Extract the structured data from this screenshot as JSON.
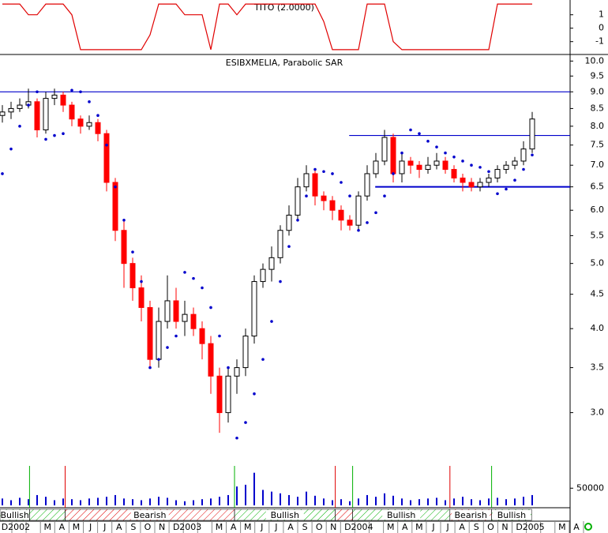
{
  "chart_data": [
    {
      "type": "line",
      "title": "TITO (2.0000)",
      "color": "#e00000",
      "values": [
        1.8,
        1.8,
        1.8,
        1.0,
        1.0,
        1.8,
        1.8,
        1.8,
        1.0,
        -1.6,
        -1.6,
        -1.6,
        -1.6,
        -1.6,
        -1.6,
        -1.6,
        -1.6,
        -0.5,
        1.8,
        1.8,
        1.8,
        1.0,
        1.0,
        1.0,
        -1.6,
        1.8,
        1.8,
        1.0,
        1.8,
        1.8,
        1.8,
        1.8,
        1.8,
        1.8,
        1.8,
        1.8,
        1.8,
        0.5,
        -1.6,
        -1.6,
        -1.6,
        -1.6,
        1.8,
        1.8,
        1.8,
        -1.0,
        -1.6,
        -1.6,
        -1.6,
        -1.6,
        -1.6,
        -1.6,
        -1.6,
        -1.6,
        -1.6,
        -1.6,
        -1.6,
        1.8,
        1.8,
        1.8,
        1.8,
        1.8
      ],
      "ylim": [
        -1.9,
        2.1
      ],
      "yticks": [
        1,
        0,
        -1
      ]
    },
    {
      "type": "candlestick",
      "title": "ESIBXMELIA, Parabolic SAR",
      "log_scale": true,
      "up_color": "#ffffff",
      "down_color": "#ff0000",
      "sar_color": "#0000cc",
      "line_color": "#0000cc",
      "open": [
        8.3,
        8.4,
        8.5,
        8.6,
        8.7,
        7.9,
        8.8,
        8.9,
        8.6,
        8.2,
        8.0,
        8.1,
        7.8,
        6.6,
        5.6,
        5.0,
        4.6,
        4.3,
        3.6,
        4.1,
        4.4,
        4.1,
        4.2,
        4.0,
        3.8,
        3.4,
        3.0,
        3.4,
        3.5,
        3.9,
        4.7,
        4.9,
        5.1,
        5.6,
        5.9,
        6.5,
        6.8,
        6.3,
        6.2,
        6.0,
        5.8,
        5.7,
        6.3,
        6.8,
        7.1,
        7.7,
        6.8,
        7.1,
        7.0,
        6.9,
        7.0,
        7.1,
        6.9,
        6.7,
        6.6,
        6.5,
        6.6,
        6.7,
        6.9,
        7.0,
        7.1,
        7.4
      ],
      "high": [
        8.6,
        8.7,
        8.8,
        9.1,
        8.8,
        9.0,
        9.1,
        9.0,
        8.7,
        8.3,
        8.3,
        8.2,
        7.9,
        6.7,
        5.8,
        5.1,
        4.8,
        4.4,
        4.3,
        4.8,
        4.6,
        4.4,
        4.3,
        4.1,
        3.9,
        3.5,
        3.5,
        3.6,
        4.0,
        4.8,
        5.0,
        5.3,
        5.7,
        6.1,
        6.7,
        7.0,
        6.9,
        6.4,
        6.3,
        6.1,
        5.9,
        6.4,
        7.0,
        7.3,
        7.9,
        7.8,
        7.3,
        7.2,
        7.1,
        7.2,
        7.3,
        7.2,
        7.0,
        6.8,
        6.7,
        6.7,
        6.8,
        7.0,
        7.1,
        7.2,
        7.6,
        8.4
      ],
      "low": [
        8.1,
        8.2,
        8.4,
        8.5,
        7.7,
        7.8,
        8.6,
        8.4,
        8.0,
        7.8,
        7.9,
        7.6,
        6.4,
        5.4,
        4.6,
        4.4,
        4.1,
        3.5,
        3.5,
        4.0,
        4.0,
        3.9,
        3.9,
        3.6,
        3.2,
        2.8,
        2.9,
        3.2,
        3.4,
        3.8,
        4.6,
        4.7,
        5.0,
        5.5,
        5.8,
        6.4,
        6.1,
        6.0,
        5.8,
        5.6,
        5.6,
        5.6,
        6.2,
        6.7,
        7.0,
        6.6,
        6.6,
        6.8,
        6.7,
        6.8,
        6.9,
        6.8,
        6.6,
        6.4,
        6.4,
        6.4,
        6.5,
        6.6,
        6.8,
        6.9,
        7.0,
        7.3
      ],
      "close": [
        8.4,
        8.5,
        8.6,
        8.7,
        7.9,
        8.8,
        8.9,
        8.6,
        8.2,
        8.0,
        8.1,
        7.8,
        6.6,
        5.6,
        5.0,
        4.6,
        4.3,
        3.6,
        4.1,
        4.4,
        4.1,
        4.2,
        4.0,
        3.8,
        3.4,
        3.0,
        3.4,
        3.5,
        3.9,
        4.7,
        4.9,
        5.1,
        5.6,
        5.9,
        6.5,
        6.8,
        6.3,
        6.2,
        6.0,
        5.8,
        5.7,
        6.3,
        6.8,
        7.1,
        7.7,
        6.8,
        7.1,
        7.0,
        6.9,
        7.0,
        7.1,
        6.9,
        6.7,
        6.6,
        6.5,
        6.6,
        6.7,
        6.9,
        7.0,
        7.1,
        7.4,
        8.2
      ],
      "sar": [
        6.8,
        7.4,
        8.0,
        8.6,
        9.0,
        7.65,
        7.75,
        7.8,
        9.05,
        9.0,
        8.7,
        8.3,
        7.5,
        6.5,
        5.8,
        5.2,
        4.7,
        3.5,
        3.6,
        3.75,
        3.9,
        4.85,
        4.75,
        4.6,
        4.3,
        3.9,
        3.5,
        2.75,
        2.9,
        3.2,
        3.6,
        4.1,
        4.7,
        5.3,
        5.8,
        6.3,
        6.9,
        6.85,
        6.8,
        6.6,
        6.3,
        5.6,
        5.75,
        5.95,
        6.3,
        6.8,
        7.3,
        7.9,
        7.8,
        7.6,
        7.45,
        7.3,
        7.2,
        7.1,
        7.0,
        6.95,
        6.85,
        6.35,
        6.45,
        6.65,
        6.9,
        7.25
      ],
      "hlines": [
        {
          "value": 9.0,
          "from": 0
        },
        {
          "value": 7.75,
          "from": 40.2
        },
        {
          "value": 6.5,
          "from": 43.2
        }
      ],
      "ylim": [
        2.5,
        10.2
      ],
      "yticks": [
        {
          "value": 10,
          "label": "10.0"
        },
        9.5,
        {
          "value": 9,
          "label": "9.0"
        },
        8.5,
        {
          "value": 8,
          "label": "8.0"
        },
        7.5,
        {
          "value": 7,
          "label": "7.0"
        },
        6.5,
        {
          "value": 6,
          "label": "6.0"
        },
        5.5,
        {
          "value": 5,
          "label": "5.0"
        },
        4.5,
        {
          "value": 4,
          "label": "4.0"
        },
        3.5,
        {
          "value": 3,
          "label": "3.0"
        }
      ]
    },
    {
      "type": "bar",
      "color": "#0000cc",
      "values": [
        20000,
        15000,
        22000,
        18000,
        30000,
        25000,
        15000,
        20000,
        18000,
        15000,
        20000,
        22000,
        25000,
        30000,
        20000,
        18000,
        15000,
        20000,
        25000,
        22000,
        15000,
        12000,
        15000,
        18000,
        20000,
        25000,
        30000,
        55000,
        60000,
        95000,
        45000,
        40000,
        35000,
        30000,
        25000,
        40000,
        28000,
        20000,
        15000,
        18000,
        12000,
        20000,
        30000,
        25000,
        35000,
        28000,
        20000,
        15000,
        18000,
        20000,
        22000,
        15000,
        20000,
        25000,
        18000,
        15000,
        20000,
        22000,
        18000,
        20000,
        25000,
        30000
      ],
      "ylim": [
        0,
        115000
      ],
      "yticks": [
        50000
      ]
    }
  ],
  "trend_bands": {
    "colors": {
      "bullish": "#00b000",
      "bearish": "#e00000"
    },
    "bands": [
      {
        "label": "Bullish",
        "trend": "bullish",
        "from": 0,
        "to": 3.4
      },
      {
        "label": null,
        "trend": "bullish",
        "from": 3.4,
        "to": 7.5
      },
      {
        "label": "Bearish",
        "trend": "bearish",
        "from": 7.5,
        "to": 27
      },
      {
        "label": "Bullish",
        "trend": "bullish",
        "from": 27,
        "to": 38.6
      },
      {
        "label": null,
        "trend": "bearish",
        "from": 38.6,
        "to": 40.6
      },
      {
        "label": "Bullish",
        "trend": "bullish",
        "from": 40.6,
        "to": 51.8
      },
      {
        "label": "Bearish",
        "trend": "bearish",
        "from": 51.8,
        "to": 56.6
      },
      {
        "label": "Bullish",
        "trend": "bullish",
        "from": 56.6,
        "to": 61.2
      }
    ]
  },
  "x_axis": {
    "labels": [
      "D",
      "2002",
      null,
      "M",
      "A",
      "M",
      "J",
      "J",
      "A",
      "S",
      "O",
      "N",
      "D",
      "2003",
      null,
      "M",
      "A",
      "M",
      "J",
      "J",
      "A",
      "S",
      "O",
      "N",
      "D",
      "2004",
      null,
      "M",
      "A",
      "M",
      "J",
      "J",
      "A",
      "S",
      "O",
      "N",
      "D",
      "2005",
      null,
      "M",
      "A"
    ]
  }
}
